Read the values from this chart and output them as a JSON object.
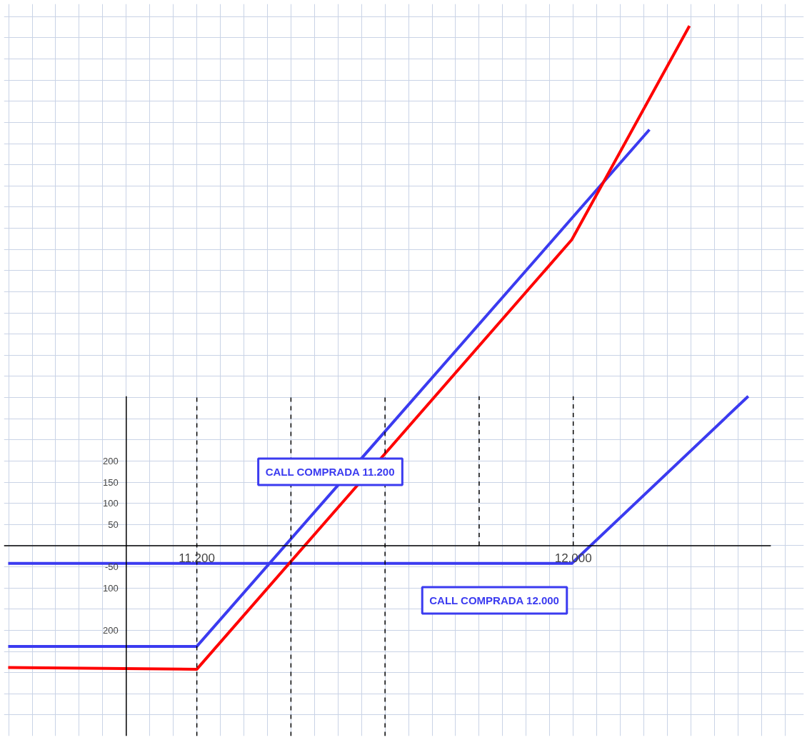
{
  "chart_data": {
    "type": "line",
    "grid": true,
    "marker": "none",
    "line_style": "solid",
    "xlim": [
      10790,
      12490
    ],
    "ylim": [
      -450,
      1280
    ],
    "xticks": [
      {
        "value": 10800,
        "label": null
      },
      {
        "value": 10850,
        "label": null
      },
      {
        "value": 10900,
        "label": null
      },
      {
        "value": 10950,
        "label": null
      },
      {
        "value": 11000,
        "label": null
      },
      {
        "value": 11050,
        "label": null
      },
      {
        "value": 11100,
        "label": null
      },
      {
        "value": 11150,
        "label": null
      },
      {
        "value": 11200,
        "label": "11.200"
      },
      {
        "value": 11250,
        "label": null
      },
      {
        "value": 11300,
        "label": null
      },
      {
        "value": 11350,
        "label": null
      },
      {
        "value": 11400,
        "label": null
      },
      {
        "value": 11450,
        "label": null
      },
      {
        "value": 11500,
        "label": null
      },
      {
        "value": 11550,
        "label": null
      },
      {
        "value": 11600,
        "label": null
      },
      {
        "value": 11650,
        "label": null
      },
      {
        "value": 11700,
        "label": null
      },
      {
        "value": 11750,
        "label": null
      },
      {
        "value": 11800,
        "label": null
      },
      {
        "value": 11850,
        "label": null
      },
      {
        "value": 11900,
        "label": null
      },
      {
        "value": 11950,
        "label": null
      },
      {
        "value": 12000,
        "label": "12.000"
      },
      {
        "value": 12050,
        "label": null
      },
      {
        "value": 12100,
        "label": null
      },
      {
        "value": 12150,
        "label": null
      },
      {
        "value": 12200,
        "label": null
      },
      {
        "value": 12250,
        "label": null
      },
      {
        "value": 12300,
        "label": null
      },
      {
        "value": 12350,
        "label": null
      },
      {
        "value": 12400,
        "label": null
      },
      {
        "value": 12450,
        "label": null
      }
    ],
    "yticks": [
      {
        "value": -400,
        "label": null
      },
      {
        "value": -350,
        "label": null
      },
      {
        "value": -300,
        "label": null
      },
      {
        "value": -250,
        "label": null
      },
      {
        "value": -200,
        "label": "200"
      },
      {
        "value": -150,
        "label": null
      },
      {
        "value": -100,
        "label": "100"
      },
      {
        "value": -50,
        "label": "-50"
      },
      {
        "value": 0,
        "label": null
      },
      {
        "value": 50,
        "label": "50"
      },
      {
        "value": 100,
        "label": "100"
      },
      {
        "value": 150,
        "label": "150"
      },
      {
        "value": 200,
        "label": "200"
      },
      {
        "value": 250,
        "label": null
      },
      {
        "value": 300,
        "label": null
      },
      {
        "value": 350,
        "label": null
      },
      {
        "value": 400,
        "label": null
      },
      {
        "value": 450,
        "label": null
      },
      {
        "value": 500,
        "label": null
      },
      {
        "value": 550,
        "label": null
      },
      {
        "value": 600,
        "label": null
      },
      {
        "value": 650,
        "label": null
      },
      {
        "value": 700,
        "label": null
      },
      {
        "value": 750,
        "label": null
      },
      {
        "value": 800,
        "label": null
      },
      {
        "value": 850,
        "label": null
      },
      {
        "value": 900,
        "label": null
      },
      {
        "value": 950,
        "label": null
      },
      {
        "value": 1000,
        "label": null
      },
      {
        "value": 1050,
        "label": null
      },
      {
        "value": 1100,
        "label": null
      },
      {
        "value": 1150,
        "label": null
      },
      {
        "value": 1200,
        "label": null
      },
      {
        "value": 1250,
        "label": null
      }
    ],
    "series": [
      {
        "color": "#3b3bf0",
        "x": [
          10799,
          11200,
          12162
        ],
        "values": [
          -238,
          -238,
          983
        ]
      },
      {
        "color": "#3b3bf0",
        "x": [
          10799,
          11997,
          12372
        ],
        "values": [
          -42,
          -42,
          353
        ]
      },
      {
        "color": "#ff0000",
        "x": [
          10799,
          11200,
          11997,
          12247
        ],
        "values": [
          -288,
          -292,
          723,
          1228
        ]
      },
      {
        "color": "#000000",
        "line_style": "solid",
        "x": [
          11050,
          11050
        ],
        "values": [
          -450,
          353
        ]
      },
      {
        "color": "#000000",
        "line_style": "solid",
        "x": [
          10790,
          12420
        ],
        "values": [
          0,
          0
        ]
      },
      {
        "color": "#000000",
        "line_style": "dashed",
        "x": [
          11200,
          11200
        ],
        "values": [
          -450,
          353
        ]
      },
      {
        "color": "#000000",
        "line_style": "dashed",
        "x": [
          11400,
          11400
        ],
        "values": [
          -450,
          353
        ]
      },
      {
        "color": "#000000",
        "line_style": "dashed",
        "x": [
          11600,
          11600
        ],
        "values": [
          -450,
          353
        ]
      },
      {
        "color": "#000000",
        "line_style": "dashed",
        "x": [
          11800,
          11800
        ],
        "values": [
          0,
          353
        ]
      },
      {
        "color": "#000000",
        "line_style": "dashed",
        "x": [
          12000,
          12000
        ],
        "values": [
          0,
          353
        ]
      }
    ],
    "annotations": [
      "CALL COMPRADA 11.200",
      "CALL COMPRADA 12.000"
    ]
  }
}
